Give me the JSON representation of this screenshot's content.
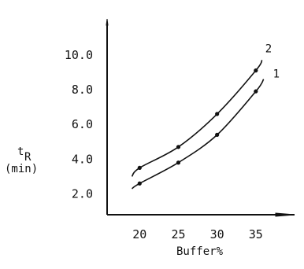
{
  "chart_data": {
    "type": "line",
    "title": "",
    "xlabel": "Buffer%",
    "ylabel_main": "t",
    "ylabel_sub": "R",
    "ylabel_unit": "(min)",
    "xlim": [
      15.8,
      40
    ],
    "ylim": [
      0.8,
      11.8
    ],
    "x_ticks": [
      20,
      25,
      30,
      35
    ],
    "x_tick_labels": [
      "20",
      "25",
      "30",
      "35"
    ],
    "y_ticks": [
      2.0,
      4.0,
      6.0,
      8.0,
      10.0
    ],
    "y_tick_labels": [
      "2.0",
      "4.0",
      "6.0",
      "8.0",
      "10.0"
    ],
    "series": [
      {
        "name": "1",
        "points": [
          [
            20,
            2.6
          ],
          [
            25,
            3.8
          ],
          [
            30,
            5.4
          ],
          [
            35,
            7.9
          ]
        ],
        "curve": [
          [
            19.0,
            2.3
          ],
          [
            20,
            2.6
          ],
          [
            25,
            3.8
          ],
          [
            30,
            5.4
          ],
          [
            35,
            7.9
          ],
          [
            36.0,
            8.6
          ]
        ]
      },
      {
        "name": "2",
        "points": [
          [
            20,
            3.5
          ],
          [
            25,
            4.7
          ],
          [
            30,
            6.6
          ],
          [
            35,
            9.1
          ]
        ],
        "curve": [
          [
            19.0,
            3.0
          ],
          [
            20,
            3.5
          ],
          [
            25,
            4.7
          ],
          [
            30,
            6.6
          ],
          [
            35,
            9.1
          ],
          [
            35.8,
            9.7
          ]
        ]
      }
    ]
  }
}
